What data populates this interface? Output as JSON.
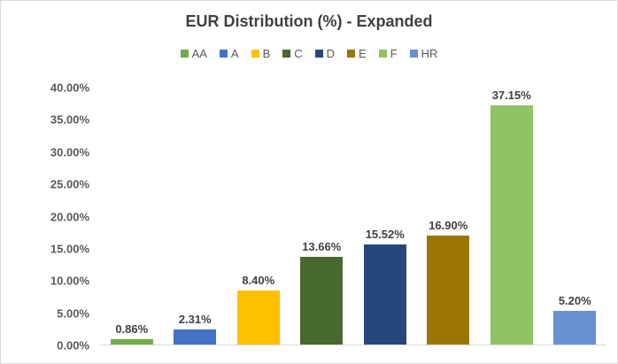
{
  "chart": {
    "background_color": "#FFFFFF",
    "border_color": "#D9D9D9",
    "title_color": "#404040",
    "axis_text_color": "#595959",
    "data_label_color": "#404040",
    "axis_line_color": "#D9D9D9"
  },
  "chart_data": {
    "type": "bar",
    "title": "EUR Distribution (%) - Expanded",
    "categories": [
      "AA",
      "A",
      "B",
      "C",
      "D",
      "E",
      "F",
      "HR"
    ],
    "values": [
      0.86,
      2.31,
      8.4,
      13.66,
      15.52,
      16.9,
      37.15,
      5.2
    ],
    "value_labels": [
      "0.86%",
      "2.31%",
      "8.40%",
      "13.66%",
      "15.52%",
      "16.90%",
      "37.15%",
      "5.20%"
    ],
    "series_colors": [
      "#70AD47",
      "#4472C4",
      "#FFC000",
      "#48692D",
      "#27477C",
      "#9A7504",
      "#8EC464",
      "#6990D1"
    ],
    "legend": [
      {
        "label": "AA",
        "color": "#70AD47"
      },
      {
        "label": "A",
        "color": "#4472C4"
      },
      {
        "label": "B",
        "color": "#FFC000"
      },
      {
        "label": "C",
        "color": "#48692D"
      },
      {
        "label": "D",
        "color": "#27477C"
      },
      {
        "label": "E",
        "color": "#9A7504"
      },
      {
        "label": "F",
        "color": "#8EC464"
      },
      {
        "label": "HR",
        "color": "#6990D1"
      }
    ],
    "legend_position": "top",
    "grid": false,
    "xlabel": "",
    "ylabel": "",
    "ylim": [
      0,
      40
    ],
    "ytick_step": 5,
    "ytick_labels": [
      "0.00%",
      "5.00%",
      "10.00%",
      "15.00%",
      "20.00%",
      "25.00%",
      "30.00%",
      "35.00%",
      "40.00%"
    ]
  }
}
